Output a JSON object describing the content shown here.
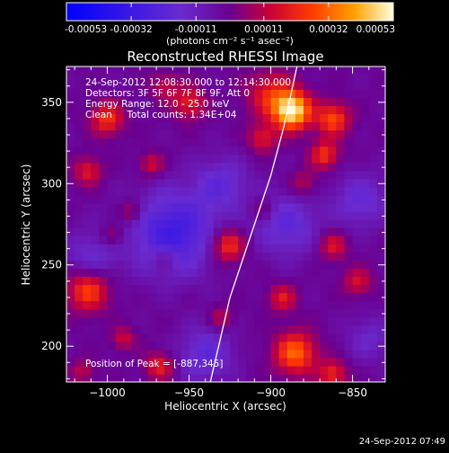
{
  "chart_data": {
    "type": "heatmap",
    "title": "Reconstructed RHESSI Image",
    "xlabel": "Heliocentric X (arcsec)",
    "ylabel": "Heliocentric Y (arcsec)",
    "xlim": [
      -1025,
      -830
    ],
    "ylim": [
      178,
      372
    ],
    "xticks": [
      -1000,
      -950,
      -900,
      -850
    ],
    "yticks": [
      200,
      250,
      300,
      350
    ],
    "colorbar": {
      "label": "(photons cm⁻² s⁻¹ asec⁻²)",
      "tick_values": [
        -0.00053,
        -0.00032,
        -0.00011,
        0.00011,
        0.00032,
        0.00053
      ],
      "tick_labels": [
        "-0.00053",
        "-0.00032",
        "-0.00011",
        "0.00011",
        "0.00032",
        "0.00053"
      ],
      "range": [
        -0.00053,
        0.00053
      ]
    },
    "annotations": [
      "24-Sep-2012 12:08:30.000 to 12:14:30.000",
      "Detectors: 3F 5F 6F 7F 8F 9F, Att 0",
      "Energy Range: 12.0 - 25.0 keV",
      "Clean     Total counts: 1.34E+04"
    ],
    "peak_label": "Position of Peak = [-887,345]",
    "peak": {
      "x": -887,
      "y": 345,
      "value": 0.00053
    },
    "limb_curve": [
      [
        -937,
        178
      ],
      [
        -925,
        230
      ],
      [
        -910,
        275
      ],
      [
        -900,
        305
      ],
      [
        -892,
        335
      ],
      [
        -884,
        372
      ]
    ],
    "sources": [
      {
        "x": -887,
        "y": 345,
        "sigma": 8,
        "value": 0.00053
      },
      {
        "x": -900,
        "y": 355,
        "sigma": 10,
        "value": 0.00022
      },
      {
        "x": -862,
        "y": 340,
        "sigma": 7,
        "value": 0.0003
      },
      {
        "x": -867,
        "y": 318,
        "sigma": 6,
        "value": 0.00026
      },
      {
        "x": -905,
        "y": 328,
        "sigma": 6,
        "value": 0.0002
      },
      {
        "x": -950,
        "y": 350,
        "sigma": 7,
        "value": 0.00022
      },
      {
        "x": -965,
        "y": 360,
        "sigma": 6,
        "value": 0.00014
      },
      {
        "x": -1000,
        "y": 340,
        "sigma": 7,
        "value": 0.00026
      },
      {
        "x": -1012,
        "y": 308,
        "sigma": 6,
        "value": 0.0002
      },
      {
        "x": -973,
        "y": 312,
        "sigma": 5,
        "value": 0.00018
      },
      {
        "x": -985,
        "y": 283,
        "sigma": 5,
        "value": 0.00016
      },
      {
        "x": -997,
        "y": 268,
        "sigma": 5,
        "value": 0.00014
      },
      {
        "x": -926,
        "y": 262,
        "sigma": 7,
        "value": 0.00028
      },
      {
        "x": -965,
        "y": 255,
        "sigma": 5,
        "value": 0.00012
      },
      {
        "x": -1012,
        "y": 235,
        "sigma": 9,
        "value": 0.0003
      },
      {
        "x": -990,
        "y": 205,
        "sigma": 5,
        "value": 0.00016
      },
      {
        "x": -968,
        "y": 188,
        "sigma": 6,
        "value": 0.00022
      },
      {
        "x": -930,
        "y": 218,
        "sigma": 5,
        "value": 0.00014
      },
      {
        "x": -893,
        "y": 230,
        "sigma": 6,
        "value": 0.0002
      },
      {
        "x": -885,
        "y": 196,
        "sigma": 9,
        "value": 0.00034
      },
      {
        "x": -862,
        "y": 183,
        "sigma": 6,
        "value": 0.00024
      },
      {
        "x": -862,
        "y": 262,
        "sigma": 6,
        "value": 0.0002
      },
      {
        "x": -847,
        "y": 240,
        "sigma": 6,
        "value": 0.00018
      },
      {
        "x": -905,
        "y": 285,
        "sigma": 5,
        "value": 0.00012
      },
      {
        "x": -1015,
        "y": 185,
        "sigma": 5,
        "value": 0.00014
      },
      {
        "x": -880,
        "y": 300,
        "sigma": 6,
        "value": 0.00014
      }
    ],
    "negatives": [
      {
        "x": -960,
        "y": 270,
        "sigma": 18,
        "value": -0.00028
      },
      {
        "x": -890,
        "y": 275,
        "sigma": 14,
        "value": -0.00018
      },
      {
        "x": -930,
        "y": 300,
        "sigma": 12,
        "value": -0.00016
      },
      {
        "x": -1010,
        "y": 255,
        "sigma": 12,
        "value": -0.00014
      },
      {
        "x": -940,
        "y": 195,
        "sigma": 12,
        "value": -0.00018
      },
      {
        "x": -845,
        "y": 290,
        "sigma": 12,
        "value": -0.00016
      },
      {
        "x": -840,
        "y": 205,
        "sigma": 10,
        "value": -0.00012
      }
    ]
  },
  "timestamp": "24-Sep-2012 07:49"
}
